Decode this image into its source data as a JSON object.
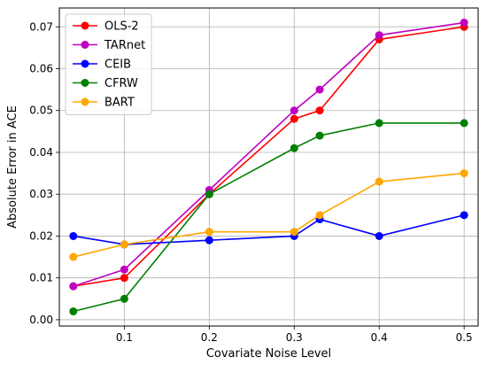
{
  "chart_data": {
    "type": "line",
    "title": "",
    "xlabel": "Covariate Noise Level",
    "ylabel": "Absolute Error in ACE",
    "x": [
      0.04,
      0.1,
      0.2,
      0.3,
      0.33,
      0.4,
      0.5
    ],
    "xticks": [
      0.1,
      0.2,
      0.3,
      0.4,
      0.5
    ],
    "xtick_labels": [
      "0.1",
      "0.2",
      "0.3",
      "0.4",
      "0.5"
    ],
    "xlim": [
      0.0235,
      0.5165
    ],
    "yticks": [
      0.0,
      0.01,
      0.02,
      0.03,
      0.04,
      0.05,
      0.06,
      0.07
    ],
    "ytick_labels": [
      "0.00",
      "0.01",
      "0.02",
      "0.03",
      "0.04",
      "0.05",
      "0.06",
      "0.07"
    ],
    "ylim": [
      -0.0015,
      0.0745
    ],
    "grid": true,
    "legend_position": "top-left",
    "series": [
      {
        "name": "OLS-2",
        "color": "#ff0000",
        "values": [
          0.008,
          0.01,
          0.03,
          0.048,
          0.05,
          0.067,
          0.07
        ]
      },
      {
        "name": "TARnet",
        "color": "#bf00bf",
        "values": [
          0.008,
          0.012,
          0.031,
          0.05,
          0.055,
          0.068,
          0.071
        ]
      },
      {
        "name": "CEIB",
        "color": "#0000ff",
        "values": [
          0.02,
          0.018,
          0.019,
          0.02,
          0.024,
          0.02,
          0.025
        ]
      },
      {
        "name": "CFRW",
        "color": "#008000",
        "values": [
          0.002,
          0.005,
          0.03,
          0.041,
          0.044,
          0.047,
          0.047
        ]
      },
      {
        "name": "BART",
        "color": "#ffa500",
        "values": [
          0.015,
          0.018,
          0.021,
          0.021,
          0.025,
          0.033,
          0.035
        ]
      }
    ]
  }
}
